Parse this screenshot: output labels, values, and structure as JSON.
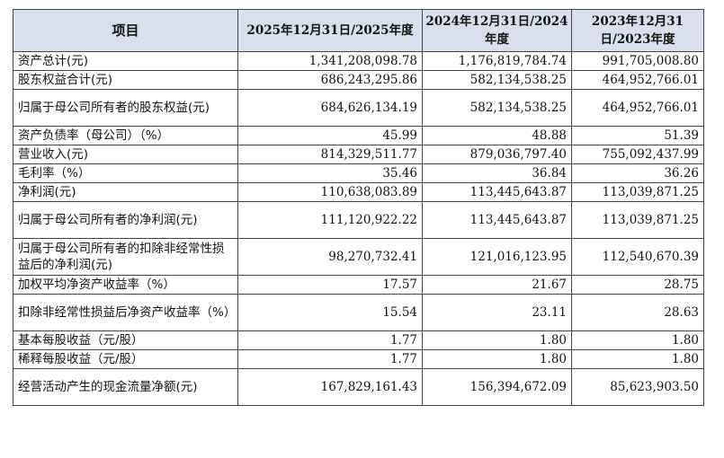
{
  "table": {
    "headers": [
      "项目",
      "2025年12月31日/2025年度",
      "2024年12月31日/2024年度",
      "2023年12月31日/2023年度"
    ],
    "rows": [
      {
        "label": "资产总计(元)",
        "values": [
          "1,341,208,098.78",
          "1,176,819,784.74",
          "991,705,008.80"
        ]
      },
      {
        "label": "股东权益合计(元)",
        "values": [
          "686,243,295.86",
          "582,134,538.25",
          "464,952,766.01"
        ]
      },
      {
        "label": "归属于母公司所有者的股东权益(元)",
        "values": [
          "684,626,134.19",
          "582,134,538.25",
          "464,952,766.01"
        ]
      },
      {
        "label": "资产负债率（母公司）（%）",
        "values": [
          "45.99",
          "48.88",
          "51.39"
        ]
      },
      {
        "label": "营业收入(元)",
        "values": [
          "814,329,511.77",
          "879,036,797.40",
          "755,092,437.99"
        ]
      },
      {
        "label": "毛利率（%）",
        "values": [
          "35.46",
          "36.84",
          "36.26"
        ]
      },
      {
        "label": "净利润(元)",
        "values": [
          "110,638,083.89",
          "113,445,643.87",
          "113,039,871.25"
        ]
      },
      {
        "label": "归属于母公司所有者的净利润(元)",
        "values": [
          "111,120,922.22",
          "113,445,643.87",
          "113,039,871.25"
        ]
      },
      {
        "label": "归属于母公司所有者的扣除非经常性损益后的净利润(元)",
        "values": [
          "98,270,732.41",
          "121,016,123.95",
          "112,540,670.39"
        ]
      },
      {
        "label": "加权平均净资产收益率（%）",
        "values": [
          "17.57",
          "21.67",
          "28.75"
        ]
      },
      {
        "label": "扣除非经常性损益后净资产收益率（%）",
        "values": [
          "15.54",
          "23.11",
          "28.63"
        ]
      },
      {
        "label": "基本每股收益（元/股）",
        "values": [
          "1.77",
          "1.80",
          "1.80"
        ]
      },
      {
        "label": "稀释每股收益（元/股）",
        "values": [
          "1.77",
          "1.80",
          "1.80"
        ]
      },
      {
        "label": "经营活动产生的现金流量净额(元)",
        "values": [
          "167,829,161.43",
          "156,394,672.09",
          "85,623,903.50"
        ]
      }
    ]
  }
}
